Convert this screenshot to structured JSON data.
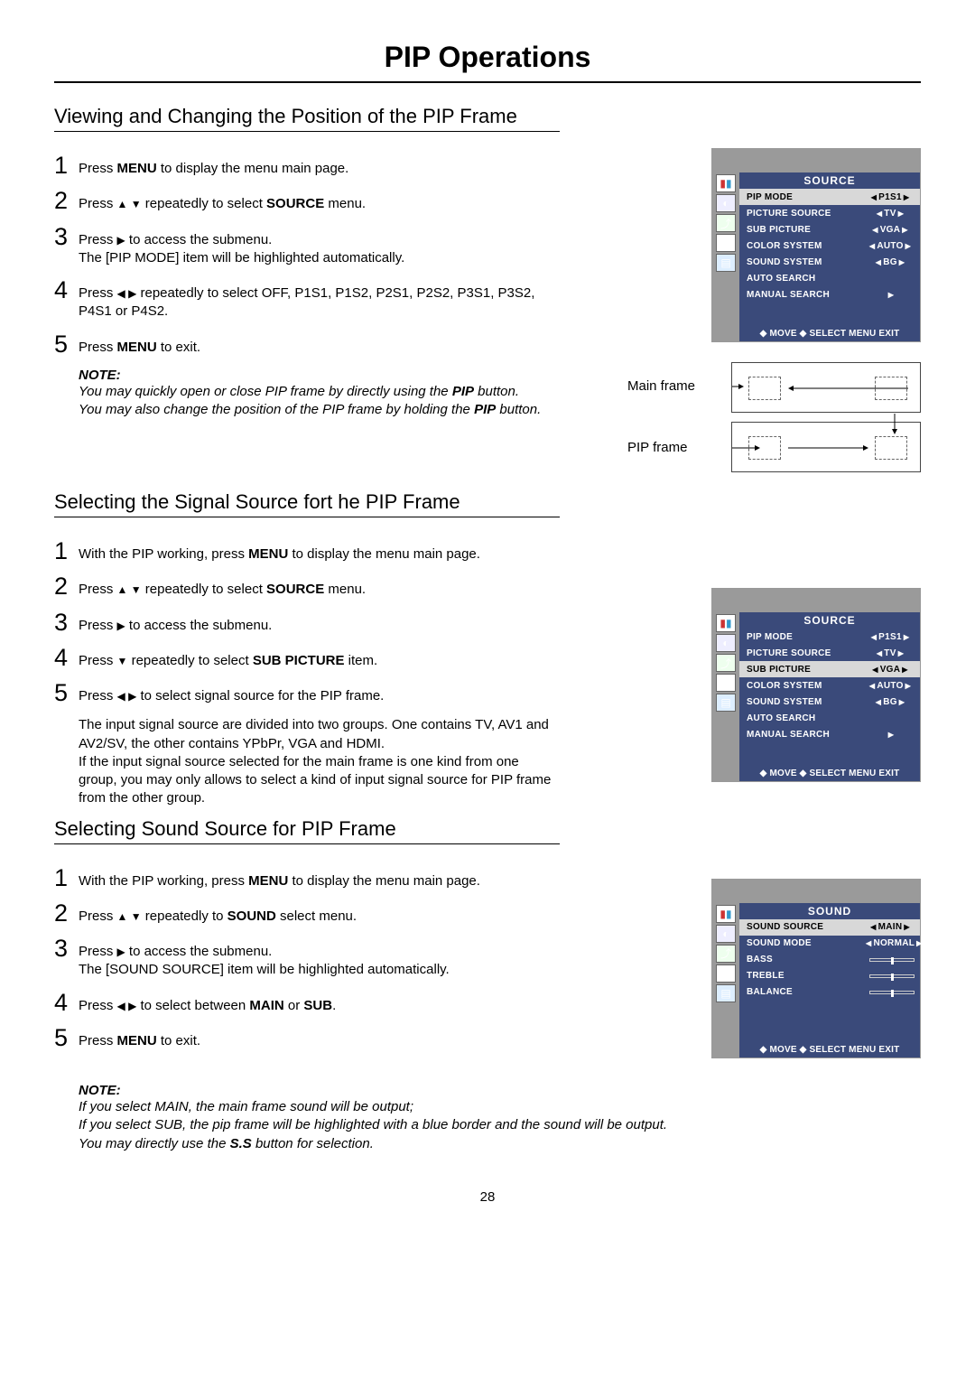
{
  "page": {
    "title": "PIP Operations",
    "number": "28"
  },
  "section1": {
    "title": "Viewing and Changing the Position of the PIP Frame",
    "steps": {
      "s1_a": "Press ",
      "s1_b": "MENU",
      "s1_c": " to display the menu main page.",
      "s2_a": "Press ",
      "s2_arrows": "▲ ▼",
      "s2_b": " repeatedly to select ",
      "s2_c": "SOURCE",
      "s2_d": " menu.",
      "s3_a": "Press ",
      "s3_arrow": "▶",
      "s3_b": " to access the submenu.",
      "s3_note": "The [PIP MODE] item will be highlighted automatically.",
      "s4_a": "Press ",
      "s4_arrows": "◀  ▶",
      "s4_b": " repeatedly to select OFF, P1S1, P1S2, P2S1, P2S2, P3S1, P3S2, P4S1 or P4S2.",
      "s5_a": "Press ",
      "s5_b": "MENU",
      "s5_c": " to exit."
    },
    "note_label": "NOTE:",
    "note1_a": "You may quickly open or close PIP frame by directly using the ",
    "note1_b": "PIP",
    "note1_c": " button.",
    "note2_a": "You may also change the position of the PIP frame by holding the ",
    "note2_b": "PIP",
    "note2_c": " button.",
    "diagram": {
      "main": "Main frame",
      "pip": "PIP frame"
    }
  },
  "section2": {
    "title": "Selecting the Signal Source fort he PIP Frame",
    "s1_a": "With the PIP working, press ",
    "s1_b": "MENU",
    "s1_c": " to display the menu main page.",
    "s2_a": "Press ",
    "s2_arrows": "▲  ▼",
    "s2_b": " repeatedly to select ",
    "s2_c": "SOURCE",
    "s2_d": " menu.",
    "s3_a": "Press ",
    "s3_arrow": "▶",
    "s3_b": " to access the submenu.",
    "s4_a": "Press ",
    "s4_arrow": "▼",
    "s4_b": " repeatedly to select ",
    "s4_c": "SUB PICTURE",
    "s4_d": " item.",
    "s5_a": "Press ",
    "s5_arrows": "◀  ▶",
    "s5_b": " to select signal source for the PIP frame.",
    "para": "The input signal source are divided into two groups. One contains TV, AV1 and AV2/SV, the other contains YPbPr, VGA and HDMI.\nIf the input signal source selected for the main frame is one kind from one group, you may only allows to select a kind of input signal source for PIP frame from the other group."
  },
  "section3": {
    "title": "Selecting Sound Source for PIP Frame",
    "s1_a": "With the PIP working, press ",
    "s1_b": "MENU",
    "s1_c": " to display the menu main page.",
    "s2_a": "Press ",
    "s2_arrows": "▲  ▼",
    "s2_b": " repeatedly to ",
    "s2_c": "SOUND",
    "s2_d": " select menu.",
    "s3_a": "Press ",
    "s3_arrow": "▶",
    "s3_b": " to access the submenu.",
    "s3_note": "The [SOUND SOURCE] item will be highlighted automatically.",
    "s4_a": "Press ",
    "s4_arrows": "◀  ▶",
    "s4_b": " to select between ",
    "s4_c": "MAIN",
    "s4_d": " or ",
    "s4_e": "SUB",
    "s4_f": ".",
    "s5_a": "Press ",
    "s5_b": "MENU",
    "s5_c": " to exit.",
    "note_label": "NOTE:",
    "note1": "If you select MAIN, the main frame sound will be output;",
    "note2": "If you select SUB, the pip frame will be highlighted with a blue border and the sound will be output.",
    "note3_a": "You may directly use the ",
    "note3_b": "S.S",
    "note3_c": " button for selection."
  },
  "osd_source": {
    "title": "SOURCE",
    "rows": [
      {
        "label": "PIP MODE",
        "val": "P1S1",
        "hl": true
      },
      {
        "label": "PICTURE SOURCE",
        "val": "TV"
      },
      {
        "label": "SUB PICTURE",
        "val": "VGA"
      },
      {
        "label": "COLOR SYSTEM",
        "val": "AUTO"
      },
      {
        "label": "SOUND SYSTEM",
        "val": "BG"
      },
      {
        "label": "AUTO SEARCH",
        "val": ""
      },
      {
        "label": "MANUAL SEARCH",
        "val": "",
        "ronly": true
      }
    ],
    "footer": "◆ MOVE   ◆ SELECT  MENU EXIT"
  },
  "osd_source2": {
    "title": "SOURCE",
    "rows": [
      {
        "label": "PIP MODE",
        "val": "P1S1"
      },
      {
        "label": "PICTURE SOURCE",
        "val": "TV"
      },
      {
        "label": "SUB PICTURE",
        "val": "VGA",
        "hl": true
      },
      {
        "label": "COLOR SYSTEM",
        "val": "AUTO"
      },
      {
        "label": "SOUND SYSTEM",
        "val": "BG"
      },
      {
        "label": "AUTO SEARCH",
        "val": ""
      },
      {
        "label": "MANUAL SEARCH",
        "val": "",
        "ronly": true
      }
    ],
    "footer": "◆ MOVE   ◆ SELECT  MENU EXIT"
  },
  "osd_sound": {
    "title": "SOUND",
    "rows": [
      {
        "label": "SOUND SOURCE",
        "val": "MAIN",
        "hl": true
      },
      {
        "label": "SOUND MODE",
        "val": "NORMAL"
      },
      {
        "label": "BASS",
        "slider": 0.5
      },
      {
        "label": "TREBLE",
        "slider": 0.5
      },
      {
        "label": "BALANCE",
        "slider": 0.5
      }
    ],
    "footer": "◆ MOVE   ◆ SELECT  MENU EXIT"
  },
  "icons": {
    "colors": [
      "#ff7a00",
      "#8aa",
      "#5a8",
      "#49d",
      "#39c"
    ]
  }
}
